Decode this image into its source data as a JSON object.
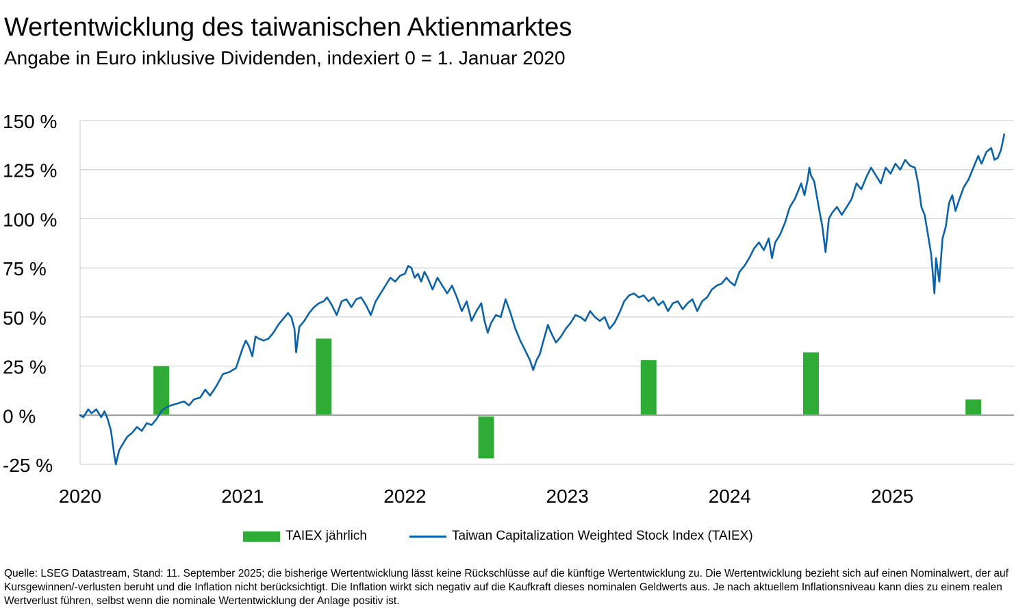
{
  "title": "Wertentwicklung des taiwanischen Aktienmarktes",
  "subtitle": "Angabe in Euro inklusive Dividenden, indexiert 0 = 1. Januar 2020",
  "footnote": "Quelle: LSEG Datastream, Stand: 11. September 2025; die bisherige Wertentwicklung lässt keine Rückschlüsse auf die künftige Wertentwicklung zu. Die Wertentwicklung bezieht sich auf einen Nominalwert, der auf Kursgewinnen/-verlusten beruht und die Inflation nicht berücksichtigt. Die Inflation wirkt sich negativ auf die Kaufkraft dieses nominalen Geldwerts aus. Je nach aktuellem Inflationsniveau kann dies zu einem realen Wertverlust führen, selbst wenn die nominale Wertentwicklung der Anlage positiv ist.",
  "legend": {
    "bar_label": "TAIEX jährlich",
    "line_label": "Taiwan Capitalization Weighted Stock Index (TAIEX)"
  },
  "colors": {
    "bar": "#2fac35",
    "line": "#0a62aa",
    "grid": "#c8c8c8",
    "zero_line": "#9a9a9a"
  },
  "chart_data": {
    "type": "bar+line",
    "ylim": [
      -25,
      150
    ],
    "yticks": [
      -25,
      0,
      25,
      50,
      75,
      100,
      125,
      150
    ],
    "ytick_labels": [
      "-25 %",
      "0 %",
      "25 %",
      "50 %",
      "75 %",
      "100 %",
      "125 %",
      "150 %"
    ],
    "xlim": [
      2020.0,
      2025.75
    ],
    "xticks": [
      2020,
      2021,
      2022,
      2023,
      2024,
      2025
    ],
    "xtick_labels": [
      "2020",
      "2021",
      "2022",
      "2023",
      "2024",
      "2025"
    ],
    "grid": "horizontal",
    "legend_position": "bottom",
    "bars": {
      "name": "TAIEX jährlich",
      "x": [
        2020.5,
        2021.5,
        2022.5,
        2023.5,
        2024.5,
        2025.5
      ],
      "values": [
        25,
        39,
        -22,
        28,
        32,
        8
      ]
    },
    "line": {
      "name": "Taiwan Capitalization Weighted Stock Index (TAIEX)",
      "points": [
        [
          2020.0,
          0
        ],
        [
          2020.02,
          -1
        ],
        [
          2020.05,
          3
        ],
        [
          2020.07,
          1
        ],
        [
          2020.1,
          3
        ],
        [
          2020.13,
          -1
        ],
        [
          2020.15,
          2
        ],
        [
          2020.17,
          -2
        ],
        [
          2020.19,
          -8
        ],
        [
          2020.21,
          -20
        ],
        [
          2020.22,
          -25
        ],
        [
          2020.24,
          -18
        ],
        [
          2020.26,
          -15
        ],
        [
          2020.29,
          -11
        ],
        [
          2020.32,
          -9
        ],
        [
          2020.35,
          -6
        ],
        [
          2020.38,
          -8
        ],
        [
          2020.41,
          -4
        ],
        [
          2020.44,
          -5
        ],
        [
          2020.47,
          -2
        ],
        [
          2020.5,
          2
        ],
        [
          2020.53,
          4
        ],
        [
          2020.56,
          5
        ],
        [
          2020.6,
          6
        ],
        [
          2020.64,
          7
        ],
        [
          2020.67,
          5
        ],
        [
          2020.7,
          8
        ],
        [
          2020.74,
          9
        ],
        [
          2020.77,
          13
        ],
        [
          2020.8,
          10
        ],
        [
          2020.84,
          15
        ],
        [
          2020.88,
          21
        ],
        [
          2020.92,
          22
        ],
        [
          2020.96,
          24
        ],
        [
          2021.0,
          34
        ],
        [
          2021.02,
          38
        ],
        [
          2021.04,
          35
        ],
        [
          2021.06,
          30
        ],
        [
          2021.08,
          40
        ],
        [
          2021.1,
          39
        ],
        [
          2021.13,
          38
        ],
        [
          2021.16,
          39
        ],
        [
          2021.19,
          42
        ],
        [
          2021.22,
          46
        ],
        [
          2021.25,
          49
        ],
        [
          2021.28,
          52
        ],
        [
          2021.3,
          50
        ],
        [
          2021.32,
          44
        ],
        [
          2021.33,
          32
        ],
        [
          2021.35,
          45
        ],
        [
          2021.38,
          48
        ],
        [
          2021.41,
          52
        ],
        [
          2021.44,
          55
        ],
        [
          2021.47,
          57
        ],
        [
          2021.5,
          58
        ],
        [
          2021.52,
          60
        ],
        [
          2021.55,
          56
        ],
        [
          2021.58,
          51
        ],
        [
          2021.61,
          58
        ],
        [
          2021.64,
          59
        ],
        [
          2021.67,
          55
        ],
        [
          2021.7,
          59
        ],
        [
          2021.73,
          60
        ],
        [
          2021.76,
          56
        ],
        [
          2021.79,
          51
        ],
        [
          2021.82,
          58
        ],
        [
          2021.85,
          62
        ],
        [
          2021.88,
          66
        ],
        [
          2021.91,
          70
        ],
        [
          2021.94,
          68
        ],
        [
          2021.97,
          71
        ],
        [
          2022.0,
          72
        ],
        [
          2022.02,
          76
        ],
        [
          2022.04,
          75
        ],
        [
          2022.06,
          70
        ],
        [
          2022.08,
          72
        ],
        [
          2022.1,
          68
        ],
        [
          2022.12,
          73
        ],
        [
          2022.14,
          70
        ],
        [
          2022.17,
          64
        ],
        [
          2022.2,
          70
        ],
        [
          2022.23,
          66
        ],
        [
          2022.26,
          62
        ],
        [
          2022.29,
          66
        ],
        [
          2022.32,
          60
        ],
        [
          2022.35,
          53
        ],
        [
          2022.38,
          58
        ],
        [
          2022.41,
          48
        ],
        [
          2022.44,
          53
        ],
        [
          2022.47,
          57
        ],
        [
          2022.49,
          48
        ],
        [
          2022.51,
          42
        ],
        [
          2022.53,
          47
        ],
        [
          2022.56,
          51
        ],
        [
          2022.59,
          50
        ],
        [
          2022.62,
          59
        ],
        [
          2022.65,
          52
        ],
        [
          2022.68,
          44
        ],
        [
          2022.71,
          38
        ],
        [
          2022.74,
          33
        ],
        [
          2022.77,
          28
        ],
        [
          2022.79,
          23
        ],
        [
          2022.81,
          28
        ],
        [
          2022.83,
          31
        ],
        [
          2022.86,
          40
        ],
        [
          2022.88,
          46
        ],
        [
          2022.9,
          42
        ],
        [
          2022.93,
          37
        ],
        [
          2022.96,
          40
        ],
        [
          2022.99,
          44
        ],
        [
          2023.02,
          47
        ],
        [
          2023.05,
          51
        ],
        [
          2023.08,
          50
        ],
        [
          2023.11,
          48
        ],
        [
          2023.14,
          53
        ],
        [
          2023.17,
          50
        ],
        [
          2023.2,
          48
        ],
        [
          2023.23,
          50
        ],
        [
          2023.26,
          44
        ],
        [
          2023.29,
          47
        ],
        [
          2023.32,
          52
        ],
        [
          2023.35,
          58
        ],
        [
          2023.38,
          61
        ],
        [
          2023.41,
          62
        ],
        [
          2023.44,
          60
        ],
        [
          2023.47,
          61
        ],
        [
          2023.5,
          58
        ],
        [
          2023.53,
          60
        ],
        [
          2023.56,
          56
        ],
        [
          2023.59,
          58
        ],
        [
          2023.62,
          53
        ],
        [
          2023.65,
          57
        ],
        [
          2023.68,
          58
        ],
        [
          2023.71,
          54
        ],
        [
          2023.74,
          57
        ],
        [
          2023.77,
          59
        ],
        [
          2023.8,
          53
        ],
        [
          2023.83,
          58
        ],
        [
          2023.86,
          60
        ],
        [
          2023.89,
          64
        ],
        [
          2023.92,
          66
        ],
        [
          2023.95,
          67
        ],
        [
          2023.98,
          70
        ],
        [
          2024.0,
          68
        ],
        [
          2024.03,
          66
        ],
        [
          2024.06,
          73
        ],
        [
          2024.09,
          76
        ],
        [
          2024.12,
          80
        ],
        [
          2024.15,
          85
        ],
        [
          2024.18,
          88
        ],
        [
          2024.21,
          84
        ],
        [
          2024.24,
          90
        ],
        [
          2024.26,
          80
        ],
        [
          2024.28,
          88
        ],
        [
          2024.31,
          92
        ],
        [
          2024.34,
          98
        ],
        [
          2024.37,
          106
        ],
        [
          2024.4,
          110
        ],
        [
          2024.42,
          114
        ],
        [
          2024.44,
          118
        ],
        [
          2024.46,
          112
        ],
        [
          2024.48,
          120
        ],
        [
          2024.49,
          126
        ],
        [
          2024.5,
          122
        ],
        [
          2024.52,
          119
        ],
        [
          2024.55,
          105
        ],
        [
          2024.57,
          96
        ],
        [
          2024.59,
          83
        ],
        [
          2024.61,
          100
        ],
        [
          2024.63,
          103
        ],
        [
          2024.66,
          106
        ],
        [
          2024.69,
          102
        ],
        [
          2024.72,
          106
        ],
        [
          2024.75,
          110
        ],
        [
          2024.78,
          118
        ],
        [
          2024.81,
          115
        ],
        [
          2024.84,
          121
        ],
        [
          2024.87,
          126
        ],
        [
          2024.9,
          122
        ],
        [
          2024.93,
          118
        ],
        [
          2024.96,
          126
        ],
        [
          2024.99,
          123
        ],
        [
          2025.02,
          128
        ],
        [
          2025.05,
          125
        ],
        [
          2025.08,
          130
        ],
        [
          2025.11,
          127
        ],
        [
          2025.14,
          126
        ],
        [
          2025.16,
          118
        ],
        [
          2025.18,
          106
        ],
        [
          2025.2,
          102
        ],
        [
          2025.22,
          92
        ],
        [
          2025.24,
          82
        ],
        [
          2025.25,
          72
        ],
        [
          2025.26,
          62
        ],
        [
          2025.27,
          80
        ],
        [
          2025.29,
          68
        ],
        [
          2025.31,
          90
        ],
        [
          2025.33,
          96
        ],
        [
          2025.35,
          108
        ],
        [
          2025.37,
          112
        ],
        [
          2025.39,
          104
        ],
        [
          2025.41,
          109
        ],
        [
          2025.44,
          116
        ],
        [
          2025.47,
          120
        ],
        [
          2025.5,
          126
        ],
        [
          2025.53,
          132
        ],
        [
          2025.55,
          128
        ],
        [
          2025.58,
          134
        ],
        [
          2025.61,
          136
        ],
        [
          2025.63,
          130
        ],
        [
          2025.65,
          131
        ],
        [
          2025.67,
          135
        ],
        [
          2025.69,
          143
        ]
      ]
    }
  }
}
